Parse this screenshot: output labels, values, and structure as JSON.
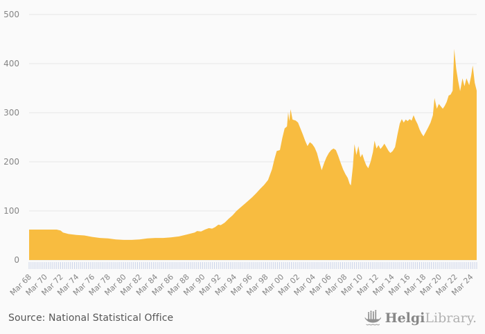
{
  "chart_data": {
    "type": "area",
    "title": "",
    "xlabel": "",
    "ylabel": "",
    "x_unit": "decimal_year_quarterly",
    "x_domain": [
      1968.2,
      2024.95
    ],
    "ylim": [
      0,
      500
    ],
    "y_ticks": [
      0,
      100,
      200,
      300,
      400,
      500
    ],
    "grid": "horizontal",
    "legend_position": "none",
    "x_tick_start_year": 1968.2,
    "x_tick_step_years": 2,
    "x_tick_labels": [
      "Mar 68",
      "Mar 70",
      "Mar 72",
      "Mar 74",
      "Mar 76",
      "Mar 78",
      "Mar 80",
      "Mar 82",
      "Mar 84",
      "Mar 86",
      "Mar 88",
      "Mar 90",
      "Mar 92",
      "Mar 94",
      "Mar 96",
      "Mar 98",
      "Mar 00",
      "Mar 02",
      "Mar 04",
      "Mar 06",
      "Mar 08",
      "Mar 10",
      "Mar 12",
      "Mar 14",
      "Mar 16",
      "Mar 18",
      "Mar 20",
      "Mar 22",
      "Mar 24"
    ],
    "minor_tick_interval_years": 0.25,
    "series": [
      {
        "name": "value",
        "color": "#f8bc40"
      }
    ],
    "style": {
      "background": "#fafafa",
      "grid_color": "#e6e6e6",
      "label_color": "#858585",
      "minor_tick_color": "#c9d2e8"
    },
    "points": [
      [
        1968.2,
        62
      ],
      [
        1969.2,
        62
      ],
      [
        1970.2,
        62
      ],
      [
        1971.2,
        62
      ],
      [
        1971.7,
        62
      ],
      [
        1972.2,
        60
      ],
      [
        1972.5,
        56
      ],
      [
        1973.2,
        53
      ],
      [
        1974.2,
        51
      ],
      [
        1975.2,
        50
      ],
      [
        1976.2,
        47
      ],
      [
        1977.2,
        45
      ],
      [
        1978.2,
        44
      ],
      [
        1979.2,
        42
      ],
      [
        1980.2,
        41
      ],
      [
        1981.2,
        41
      ],
      [
        1982.2,
        42
      ],
      [
        1983.2,
        44
      ],
      [
        1984.2,
        45
      ],
      [
        1985.2,
        45
      ],
      [
        1986.2,
        46
      ],
      [
        1987.2,
        48
      ],
      [
        1988.2,
        52
      ],
      [
        1989.2,
        56
      ],
      [
        1989.5,
        59
      ],
      [
        1990.0,
        58
      ],
      [
        1990.5,
        62
      ],
      [
        1991.0,
        65
      ],
      [
        1991.4,
        64
      ],
      [
        1991.8,
        67
      ],
      [
        1992.2,
        72
      ],
      [
        1992.5,
        71
      ],
      [
        1993.0,
        76
      ],
      [
        1993.5,
        84
      ],
      [
        1994.0,
        91
      ],
      [
        1994.5,
        100
      ],
      [
        1995.0,
        107
      ],
      [
        1995.5,
        114
      ],
      [
        1996.0,
        121
      ],
      [
        1996.5,
        128
      ],
      [
        1997.0,
        136
      ],
      [
        1997.5,
        145
      ],
      [
        1998.0,
        153
      ],
      [
        1998.5,
        163
      ],
      [
        1999.0,
        185
      ],
      [
        1999.3,
        205
      ],
      [
        1999.6,
        222
      ],
      [
        2000.0,
        224
      ],
      [
        2000.3,
        248
      ],
      [
        2000.6,
        268
      ],
      [
        2000.9,
        272
      ],
      [
        2001.05,
        301
      ],
      [
        2001.2,
        283
      ],
      [
        2001.35,
        307
      ],
      [
        2001.6,
        286
      ],
      [
        2002.0,
        284
      ],
      [
        2002.3,
        280
      ],
      [
        2002.6,
        268
      ],
      [
        2002.9,
        256
      ],
      [
        2003.2,
        243
      ],
      [
        2003.5,
        232
      ],
      [
        2003.8,
        240
      ],
      [
        2004.1,
        236
      ],
      [
        2004.4,
        229
      ],
      [
        2004.7,
        218
      ],
      [
        2005.0,
        200
      ],
      [
        2005.3,
        183
      ],
      [
        2005.6,
        197
      ],
      [
        2005.9,
        209
      ],
      [
        2006.2,
        218
      ],
      [
        2006.5,
        224
      ],
      [
        2006.8,
        227
      ],
      [
        2007.1,
        224
      ],
      [
        2007.4,
        212
      ],
      [
        2007.7,
        198
      ],
      [
        2008.0,
        185
      ],
      [
        2008.3,
        175
      ],
      [
        2008.6,
        167
      ],
      [
        2008.85,
        155
      ],
      [
        2009.0,
        152
      ],
      [
        2009.25,
        190
      ],
      [
        2009.45,
        236
      ],
      [
        2009.7,
        214
      ],
      [
        2009.95,
        232
      ],
      [
        2010.2,
        209
      ],
      [
        2010.45,
        216
      ],
      [
        2010.7,
        203
      ],
      [
        2010.95,
        193
      ],
      [
        2011.2,
        187
      ],
      [
        2011.5,
        200
      ],
      [
        2011.8,
        220
      ],
      [
        2012.0,
        243
      ],
      [
        2012.25,
        227
      ],
      [
        2012.5,
        234
      ],
      [
        2012.75,
        226
      ],
      [
        2013.0,
        231
      ],
      [
        2013.25,
        237
      ],
      [
        2013.5,
        230
      ],
      [
        2013.75,
        223
      ],
      [
        2014.0,
        218
      ],
      [
        2014.3,
        222
      ],
      [
        2014.6,
        230
      ],
      [
        2014.9,
        255
      ],
      [
        2015.2,
        278
      ],
      [
        2015.45,
        287
      ],
      [
        2015.7,
        280
      ],
      [
        2015.95,
        286
      ],
      [
        2016.2,
        283
      ],
      [
        2016.45,
        287
      ],
      [
        2016.7,
        284
      ],
      [
        2016.95,
        295
      ],
      [
        2017.2,
        285
      ],
      [
        2017.45,
        277
      ],
      [
        2017.7,
        266
      ],
      [
        2017.95,
        258
      ],
      [
        2018.2,
        252
      ],
      [
        2018.5,
        261
      ],
      [
        2018.8,
        270
      ],
      [
        2019.1,
        280
      ],
      [
        2019.4,
        295
      ],
      [
        2019.6,
        330
      ],
      [
        2019.9,
        308
      ],
      [
        2020.15,
        318
      ],
      [
        2020.4,
        313
      ],
      [
        2020.65,
        308
      ],
      [
        2020.9,
        314
      ],
      [
        2021.15,
        322
      ],
      [
        2021.4,
        335
      ],
      [
        2021.65,
        337
      ],
      [
        2021.9,
        345
      ],
      [
        2022.1,
        430
      ],
      [
        2022.35,
        390
      ],
      [
        2022.6,
        365
      ],
      [
        2022.85,
        344
      ],
      [
        2023.15,
        370
      ],
      [
        2023.4,
        354
      ],
      [
        2023.65,
        370
      ],
      [
        2024.0,
        356
      ],
      [
        2024.25,
        375
      ],
      [
        2024.45,
        396
      ],
      [
        2024.7,
        361
      ],
      [
        2024.95,
        345
      ]
    ]
  },
  "footer": {
    "source": "Source: National Statistical Office",
    "logo": {
      "brand_bold": "Helgi",
      "brand_light": "Library.",
      "icon": "longship-icon",
      "color": "#8f8f8f"
    }
  }
}
